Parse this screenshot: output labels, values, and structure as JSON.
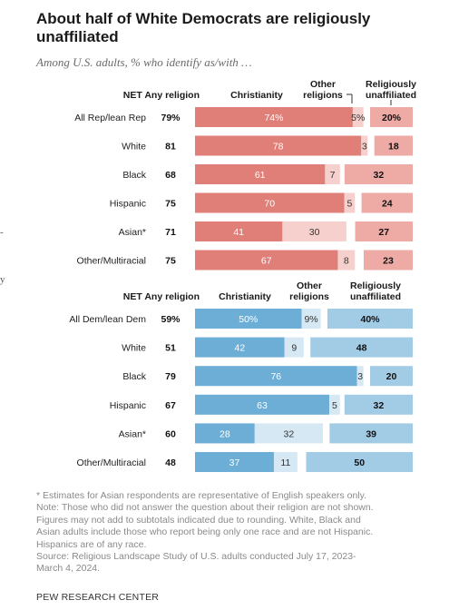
{
  "title": "About half of White Democrats are religiously unaffiliated",
  "subtitle": "Among U.S. adults, % who identify as/with …",
  "left_fragments": [
    "-",
    "y"
  ],
  "colors": {
    "rep_christianity": "#e07e78",
    "rep_other": "#f6d0cc",
    "rep_unaffiliated": "#eeaaa4",
    "dem_christianity": "#6daed7",
    "dem_other": "#d5e8f4",
    "dem_unaffiliated": "#a2cbe6"
  },
  "chart_data": [
    {
      "type": "bar",
      "stacked": true,
      "panel": "Republicans",
      "column_headers": {
        "net": "NET Any religion",
        "christianity": "Christianity",
        "other": [
          "Other",
          "religions"
        ],
        "unaffiliated": [
          "Religiously",
          "unaffiliated"
        ]
      },
      "categories": [
        "All Rep/lean Rep",
        "White",
        "Black",
        "Hispanic",
        "Asian*",
        "Other/Multiracial"
      ],
      "net_any_religion": [
        "79%",
        "81",
        "68",
        "75",
        "71",
        "75"
      ],
      "series": [
        {
          "name": "Christianity",
          "values": [
            74,
            78,
            61,
            70,
            41,
            67
          ],
          "labels": [
            "74%",
            "78",
            "61",
            "70",
            "41",
            "67"
          ]
        },
        {
          "name": "Other religions",
          "values": [
            5,
            3,
            7,
            5,
            30,
            8
          ],
          "labels": [
            "5%",
            "3",
            "7",
            "5",
            "30",
            "8"
          ]
        },
        {
          "name": "Religiously unaffiliated",
          "values": [
            20,
            18,
            32,
            24,
            27,
            23
          ],
          "labels": [
            "20%",
            "18",
            "32",
            "24",
            "27",
            "23"
          ]
        }
      ]
    },
    {
      "type": "bar",
      "stacked": true,
      "panel": "Democrats",
      "column_headers": {
        "net": "NET Any religion",
        "christianity": "Christianity",
        "other": [
          "Other",
          "religions"
        ],
        "unaffiliated": [
          "Religiously",
          "unaffiliated"
        ]
      },
      "categories": [
        "All Dem/lean Dem",
        "White",
        "Black",
        "Hispanic",
        "Asian*",
        "Other/Multiracial"
      ],
      "net_any_religion": [
        "59%",
        "51",
        "79",
        "67",
        "60",
        "48"
      ],
      "series": [
        {
          "name": "Christianity",
          "values": [
            50,
            42,
            76,
            63,
            28,
            37
          ],
          "labels": [
            "50%",
            "42",
            "76",
            "63",
            "28",
            "37"
          ]
        },
        {
          "name": "Other religions",
          "values": [
            9,
            9,
            3,
            5,
            32,
            11
          ],
          "labels": [
            "9%",
            "9",
            "3",
            "5",
            "32",
            "11"
          ]
        },
        {
          "name": "Religiously unaffiliated",
          "values": [
            40,
            48,
            20,
            32,
            39,
            50
          ],
          "labels": [
            "40%",
            "48",
            "20",
            "32",
            "39",
            "50"
          ]
        }
      ]
    }
  ],
  "notes": [
    "* Estimates for Asian respondents are representative of English speakers only.",
    "Note: Those who did not answer the question about their religion are not shown.",
    "Figures may not add to subtotals indicated due to rounding. White, Black and",
    "Asian adults include those who report being only one race and are not Hispanic.",
    "Hispanics are of any race.",
    "Source: Religious Landscape Study of U.S. adults conducted July 17, 2023-",
    "March 4, 2024."
  ],
  "source_org": "PEW RESEARCH CENTER"
}
